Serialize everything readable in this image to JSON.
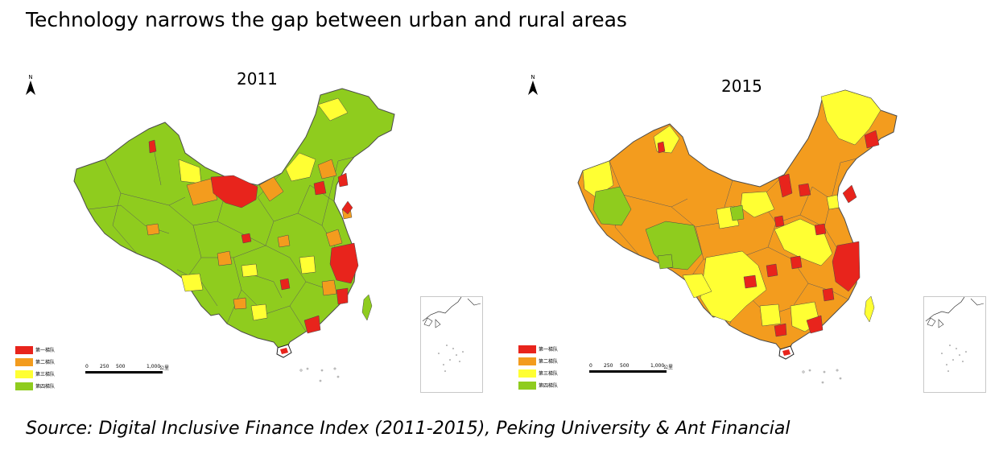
{
  "title": "Technology narrows the gap between urban and rural areas",
  "source": "Source: Digital Inclusive Finance Index (2011-2015), Peking University & Ant Financial",
  "colors": {
    "tier1": "#e8241c",
    "tier2": "#f39c1e",
    "tier3": "#ffff33",
    "tier4": "#8fcc1e",
    "border": "#4a4a4a"
  },
  "maps": [
    {
      "year": "2011",
      "north_label": "N",
      "legend": [
        "第一梯队",
        "第二梯队",
        "第三梯队",
        "第四梯队"
      ],
      "scale": {
        "ticks": [
          "0",
          "250",
          "500",
          "1,000"
        ],
        "unit": "公里"
      }
    },
    {
      "year": "2015",
      "north_label": "N",
      "legend": [
        "第一梯队",
        "第二梯队",
        "第三梯队",
        "第四梯队"
      ],
      "scale": {
        "ticks": [
          "0",
          "250",
          "500",
          "1,000"
        ],
        "unit": "公里"
      }
    }
  ]
}
